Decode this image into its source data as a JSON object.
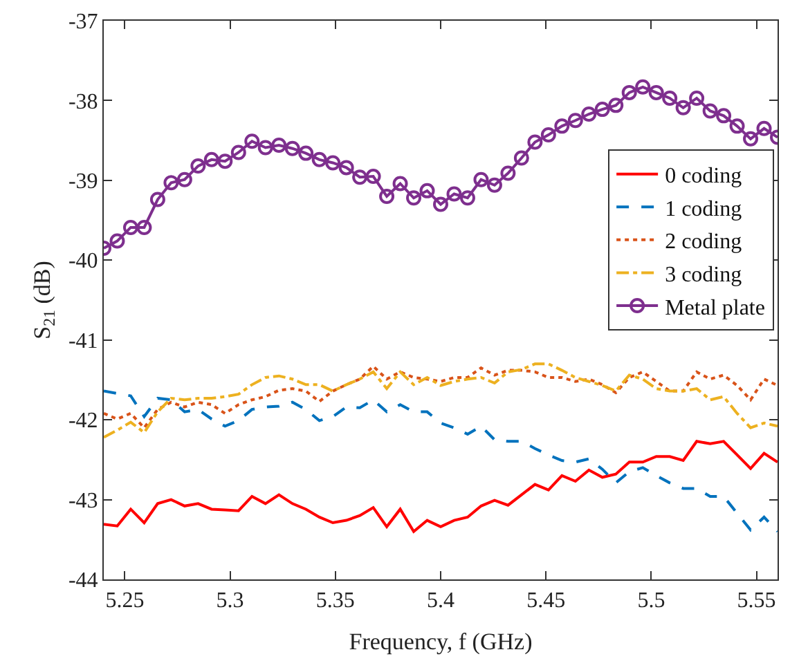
{
  "chart_data": {
    "type": "line",
    "xlabel": "Frequency, f (GHz)",
    "ylabel": "S$_{21}$ (dB)",
    "x": [
      5.24,
      5.2464,
      5.2528,
      5.2592,
      5.2656,
      5.272,
      5.2784,
      5.2848,
      5.2912,
      5.2976,
      5.304,
      5.3104,
      5.3168,
      5.3232,
      5.3296,
      5.336,
      5.3424,
      5.3488,
      5.3552,
      5.3616,
      5.368,
      5.3744,
      5.3808,
      5.3872,
      5.3936,
      5.4,
      5.4064,
      5.4128,
      5.4192,
      5.4256,
      5.432,
      5.4384,
      5.4448,
      5.4512,
      5.4576,
      5.464,
      5.4704,
      5.4768,
      5.4832,
      5.4896,
      5.496,
      5.5024,
      5.5088,
      5.5152,
      5.5216,
      5.528,
      5.5344,
      5.5408,
      5.5472,
      5.5536,
      5.56
    ],
    "series": [
      {
        "name": "0 coding",
        "color": "#ff0000",
        "line_style": "solid",
        "marker": "none",
        "values": [
          -43.31,
          -43.33,
          -43.12,
          -43.29,
          -43.05,
          -43.0,
          -43.08,
          -43.05,
          -43.12,
          -43.13,
          -43.14,
          -42.96,
          -43.05,
          -42.94,
          -43.05,
          -43.12,
          -43.22,
          -43.29,
          -43.26,
          -43.2,
          -43.1,
          -43.34,
          -43.12,
          -43.4,
          -43.26,
          -43.34,
          -43.26,
          -43.22,
          -43.08,
          -43.01,
          -43.07,
          -42.94,
          -42.81,
          -42.88,
          -42.7,
          -42.77,
          -42.63,
          -42.72,
          -42.68,
          -42.53,
          -42.53,
          -42.46,
          -42.46,
          -42.51,
          -42.27,
          -42.3,
          -42.27,
          -42.44,
          -42.61,
          -42.42,
          -42.53
        ]
      },
      {
        "name": "1 coding",
        "color": "#0072bd",
        "line_style": "dashed",
        "marker": "none",
        "values": [
          -41.64,
          -41.67,
          -41.7,
          -41.96,
          -41.73,
          -41.75,
          -41.9,
          -41.87,
          -41.99,
          -42.08,
          -42.01,
          -41.87,
          -41.84,
          -41.83,
          -41.78,
          -41.87,
          -42.01,
          -41.96,
          -41.84,
          -41.85,
          -41.75,
          -41.9,
          -41.81,
          -41.9,
          -41.9,
          -42.04,
          -42.1,
          -42.18,
          -42.08,
          -42.25,
          -42.27,
          -42.27,
          -42.36,
          -42.44,
          -42.51,
          -42.53,
          -42.49,
          -42.62,
          -42.79,
          -42.65,
          -42.6,
          -42.7,
          -42.79,
          -42.86,
          -42.86,
          -42.96,
          -42.96,
          -43.17,
          -43.38,
          -43.22,
          -43.4
        ]
      },
      {
        "name": "2 coding",
        "color": "#d95319",
        "line_style": "dotted",
        "marker": "none",
        "values": [
          -41.92,
          -41.99,
          -41.92,
          -42.1,
          -41.87,
          -41.78,
          -41.84,
          -41.78,
          -41.81,
          -41.92,
          -41.81,
          -41.75,
          -41.71,
          -41.63,
          -41.61,
          -41.64,
          -41.77,
          -41.64,
          -41.56,
          -41.49,
          -41.33,
          -41.49,
          -41.4,
          -41.47,
          -41.49,
          -41.52,
          -41.47,
          -41.47,
          -41.35,
          -41.44,
          -41.38,
          -41.38,
          -41.4,
          -41.47,
          -41.47,
          -41.52,
          -41.49,
          -41.56,
          -41.66,
          -41.47,
          -41.4,
          -41.52,
          -41.64,
          -41.64,
          -41.4,
          -41.49,
          -41.44,
          -41.57,
          -41.75,
          -41.49,
          -41.57
        ]
      },
      {
        "name": "3 coding",
        "color": "#edb120",
        "line_style": "dashdot",
        "marker": "none",
        "values": [
          -42.22,
          -42.13,
          -42.03,
          -42.16,
          -41.9,
          -41.73,
          -41.75,
          -41.73,
          -41.73,
          -41.71,
          -41.68,
          -41.56,
          -41.47,
          -41.45,
          -41.49,
          -41.56,
          -41.56,
          -41.64,
          -41.56,
          -41.49,
          -41.4,
          -41.61,
          -41.4,
          -41.56,
          -41.47,
          -41.57,
          -41.52,
          -41.49,
          -41.47,
          -41.54,
          -41.4,
          -41.37,
          -41.3,
          -41.3,
          -41.38,
          -41.47,
          -41.52,
          -41.57,
          -41.64,
          -41.44,
          -41.49,
          -41.61,
          -41.64,
          -41.64,
          -41.61,
          -41.75,
          -41.71,
          -41.92,
          -42.1,
          -42.04,
          -42.08
        ]
      },
      {
        "name": "Metal plate",
        "color": "#7e2f8e",
        "line_style": "solid",
        "marker": "circle",
        "values": [
          -39.85,
          -39.76,
          -39.59,
          -39.59,
          -39.24,
          -39.03,
          -38.99,
          -38.82,
          -38.74,
          -38.76,
          -38.65,
          -38.51,
          -38.59,
          -38.56,
          -38.6,
          -38.66,
          -38.74,
          -38.78,
          -38.84,
          -38.96,
          -38.95,
          -39.2,
          -39.04,
          -39.22,
          -39.13,
          -39.3,
          -39.17,
          -39.22,
          -38.99,
          -39.06,
          -38.91,
          -38.72,
          -38.52,
          -38.43,
          -38.32,
          -38.25,
          -38.17,
          -38.11,
          -38.06,
          -37.9,
          -37.83,
          -37.9,
          -37.97,
          -38.09,
          -37.97,
          -38.13,
          -38.19,
          -38.32,
          -38.48,
          -38.35,
          -38.46
        ]
      }
    ],
    "xlim": [
      5.24,
      5.56
    ],
    "xticks": [
      {
        "value": 5.25,
        "label": "5.25"
      },
      {
        "value": 5.3,
        "label": "5.3"
      },
      {
        "value": 5.35,
        "label": "5.35"
      },
      {
        "value": 5.4,
        "label": "5.4"
      },
      {
        "value": 5.45,
        "label": "5.45"
      },
      {
        "value": 5.5,
        "label": "5.5"
      },
      {
        "value": 5.55,
        "label": "5.55"
      }
    ],
    "ylim": [
      -44,
      -37
    ],
    "yticks": [
      -44,
      -43,
      -42,
      -41,
      -40,
      -39,
      -38,
      -37
    ],
    "legend": "top right"
  }
}
